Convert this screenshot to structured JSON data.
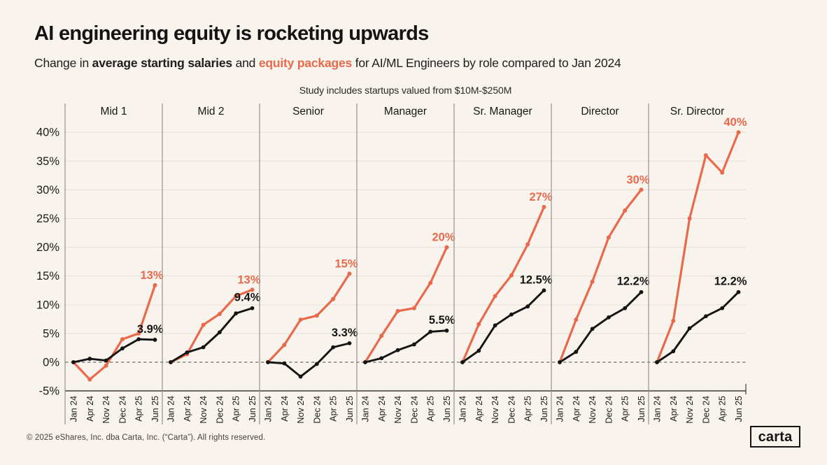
{
  "header": {
    "title": "AI engineering equity is rocketing upwards",
    "subtitle": {
      "prefix": "Change in ",
      "salaries": "average starting salaries",
      "mid": " and ",
      "equity": "equity packages",
      "suffix": " for AI/ML Engineers by role compared to Jan 2024"
    },
    "note": "Study includes startups valued from $10M-$250M"
  },
  "chart_data": {
    "type": "line",
    "title": "AI engineering equity is rocketing upwards",
    "x_labels": [
      "Jan 24",
      "Apr 24",
      "Nov 24",
      "Dec 24",
      "Apr 25",
      "Jun 25"
    ],
    "ylim": [
      -5,
      45
    ],
    "yticks": [
      -5,
      0,
      5,
      10,
      15,
      20,
      25,
      30,
      35,
      40
    ],
    "ytick_suffix": "%",
    "grid": true,
    "zero_line": "dashed",
    "legend_position": "none",
    "series_names": {
      "equity": "equity packages",
      "salary": "average starting salaries"
    },
    "colors": {
      "equity": "#e8694b",
      "salary": "#141414",
      "grid": "#e6e1d8"
    },
    "panels": [
      {
        "role": "Mid 1",
        "equity": [
          0,
          -3.0,
          -0.6,
          4.0,
          5.0,
          13.4
        ],
        "salary": [
          0,
          0.6,
          0.3,
          2.4,
          4.0,
          3.9
        ],
        "equity_label": "13%",
        "salary_label": "3.9%"
      },
      {
        "role": "Mid 2",
        "equity": [
          0,
          1.4,
          6.5,
          8.4,
          11.5,
          12.6
        ],
        "salary": [
          0,
          1.7,
          2.6,
          5.2,
          8.5,
          9.4
        ],
        "equity_label": "13%",
        "salary_label": "9.4%"
      },
      {
        "role": "Senior",
        "equity": [
          0,
          3.0,
          7.4,
          8.1,
          11.0,
          15.4
        ],
        "salary": [
          0,
          -0.2,
          -2.5,
          -0.3,
          2.6,
          3.3
        ],
        "equity_label": "15%",
        "salary_label": "3.3%"
      },
      {
        "role": "Manager",
        "equity": [
          0,
          4.6,
          8.9,
          9.4,
          13.8,
          20.0
        ],
        "salary": [
          0,
          0.7,
          2.1,
          3.1,
          5.3,
          5.5
        ],
        "equity_label": "20%",
        "salary_label": "5.5%"
      },
      {
        "role": "Sr. Manager",
        "equity": [
          0,
          6.6,
          11.5,
          15.1,
          20.5,
          27.0
        ],
        "salary": [
          0,
          2.0,
          6.4,
          8.3,
          9.7,
          12.5
        ],
        "equity_label": "27%",
        "salary_label": "12.5%"
      },
      {
        "role": "Director",
        "equity": [
          0,
          7.4,
          14.0,
          21.7,
          26.4,
          30.0
        ],
        "salary": [
          0,
          1.8,
          5.8,
          7.8,
          9.4,
          12.2
        ],
        "equity_label": "30%",
        "salary_label": "12.2%"
      },
      {
        "role": "Sr. Director",
        "equity": [
          0,
          7.2,
          25.0,
          36.0,
          33.0,
          40.0
        ],
        "salary": [
          0,
          1.9,
          5.9,
          8.0,
          9.4,
          12.2
        ],
        "equity_label": "40%",
        "salary_label": "12.2%"
      }
    ]
  },
  "footer": {
    "copyright": "© 2025 eShares, Inc. dba Carta, Inc. (“Carta”). All rights reserved.",
    "logo": "carta"
  }
}
